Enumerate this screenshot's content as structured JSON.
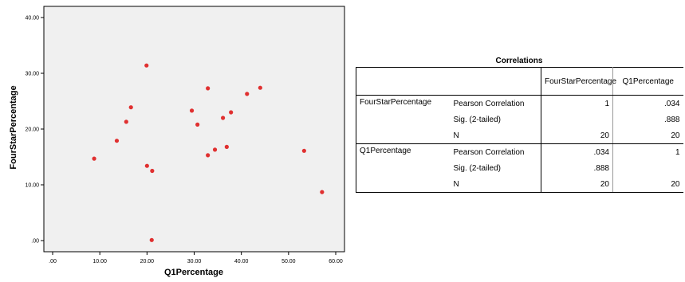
{
  "chart_data": [
    {
      "type": "scatter",
      "xlabel": "Q1Percentage",
      "ylabel": "FourStarPercentage",
      "xlim": [
        0,
        60
      ],
      "ylim": [
        0,
        40
      ],
      "x_ticks": [
        ".00",
        "10.00",
        "20.00",
        "30.00",
        "40.00",
        "50.00",
        "60.00"
      ],
      "y_ticks": [
        ".00",
        "10.00",
        "20.00",
        "30.00",
        "40.00"
      ],
      "marker_color": "#e03030",
      "plot_background": "#f0f0f0",
      "grid": false,
      "points": [
        {
          "x": 8.8,
          "y": 14.7
        },
        {
          "x": 13.6,
          "y": 17.9
        },
        {
          "x": 15.6,
          "y": 21.3
        },
        {
          "x": 16.6,
          "y": 23.9
        },
        {
          "x": 19.9,
          "y": 31.4
        },
        {
          "x": 20.0,
          "y": 13.4
        },
        {
          "x": 21.1,
          "y": 12.5
        },
        {
          "x": 21.0,
          "y": 0.1
        },
        {
          "x": 29.5,
          "y": 23.3
        },
        {
          "x": 30.7,
          "y": 20.8
        },
        {
          "x": 32.9,
          "y": 27.3
        },
        {
          "x": 32.9,
          "y": 15.3
        },
        {
          "x": 34.4,
          "y": 16.3
        },
        {
          "x": 36.1,
          "y": 22.0
        },
        {
          "x": 36.9,
          "y": 16.8
        },
        {
          "x": 37.8,
          "y": 23.0
        },
        {
          "x": 41.2,
          "y": 26.3
        },
        {
          "x": 44.0,
          "y": 27.4
        },
        {
          "x": 53.3,
          "y": 16.1
        },
        {
          "x": 57.1,
          "y": 8.7
        }
      ]
    },
    {
      "type": "table",
      "title": "Correlations",
      "columns": [
        "",
        "",
        "FourStarPercentage",
        "Q1Percentage"
      ],
      "groups": [
        {
          "name": "FourStarPercentage",
          "rows": [
            {
              "label": "Pearson Correlation",
              "values": [
                "1",
                ".034"
              ]
            },
            {
              "label": "Sig. (2-tailed)",
              "values": [
                "",
                ".888"
              ]
            },
            {
              "label": "N",
              "values": [
                "20",
                "20"
              ]
            }
          ]
        },
        {
          "name": "Q1Percentage",
          "rows": [
            {
              "label": "Pearson Correlation",
              "values": [
                ".034",
                "1"
              ]
            },
            {
              "label": "Sig. (2-tailed)",
              "values": [
                ".888",
                ""
              ]
            },
            {
              "label": "N",
              "values": [
                "20",
                "20"
              ]
            }
          ]
        }
      ]
    }
  ]
}
